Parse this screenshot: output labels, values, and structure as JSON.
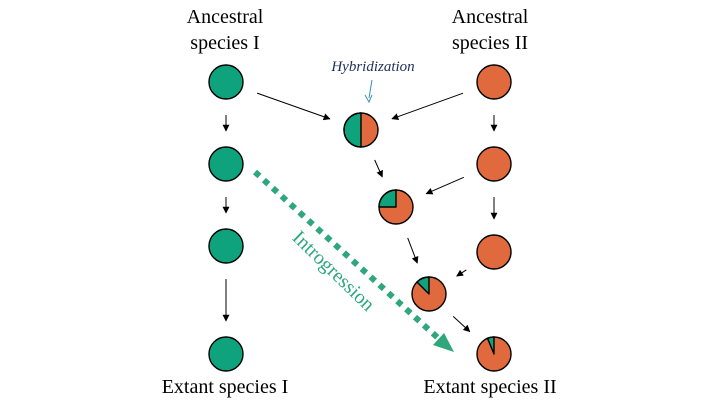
{
  "labels": {
    "ancestral_1": "Ancestral\nspecies I",
    "ancestral_2": "Ancestral\nspecies II",
    "extant_1": "Extant species I",
    "extant_2": "Extant species II",
    "hybridization": "Hybridization",
    "introgression": "Introgression"
  },
  "colors": {
    "species_1": "#0ea37c",
    "species_2": "#e06a3d",
    "hybridization_text": "#1f2f5c",
    "introgression": "#2ea77d"
  },
  "nodes": [
    {
      "id": "s1-gen0",
      "lineage": "species-1",
      "species_1_fraction": 1.0
    },
    {
      "id": "s1-gen1",
      "lineage": "species-1",
      "species_1_fraction": 1.0
    },
    {
      "id": "s1-gen2",
      "lineage": "species-1",
      "species_1_fraction": 1.0
    },
    {
      "id": "s1-gen3",
      "lineage": "species-1",
      "species_1_fraction": 1.0
    },
    {
      "id": "s2-gen0",
      "lineage": "species-2",
      "species_1_fraction": 0.0
    },
    {
      "id": "s2-gen1",
      "lineage": "species-2",
      "species_1_fraction": 0.0
    },
    {
      "id": "s2-gen2",
      "lineage": "species-2",
      "species_1_fraction": 0.0
    },
    {
      "id": "hyb-gen1",
      "lineage": "hybrid",
      "species_1_fraction": 0.5
    },
    {
      "id": "hyb-gen2",
      "lineage": "hybrid",
      "species_1_fraction": 0.25
    },
    {
      "id": "hyb-gen3",
      "lineage": "hybrid",
      "species_1_fraction": 0.125
    },
    {
      "id": "hyb-gen4",
      "lineage": "hybrid",
      "species_1_fraction": 0.0625
    }
  ],
  "edges": [
    {
      "from": "s1-gen0",
      "to": "s1-gen1"
    },
    {
      "from": "s1-gen1",
      "to": "s1-gen2"
    },
    {
      "from": "s1-gen2",
      "to": "s1-gen3"
    },
    {
      "from": "s2-gen0",
      "to": "s2-gen1"
    },
    {
      "from": "s2-gen1",
      "to": "s2-gen2"
    },
    {
      "from": "s1-gen0",
      "to": "hyb-gen1"
    },
    {
      "from": "s2-gen0",
      "to": "hyb-gen1"
    },
    {
      "from": "hyb-gen1",
      "to": "hyb-gen2"
    },
    {
      "from": "s2-gen1",
      "to": "hyb-gen2"
    },
    {
      "from": "hyb-gen2",
      "to": "hyb-gen3"
    },
    {
      "from": "s2-gen2",
      "to": "hyb-gen3"
    },
    {
      "from": "hyb-gen3",
      "to": "hyb-gen4"
    }
  ]
}
